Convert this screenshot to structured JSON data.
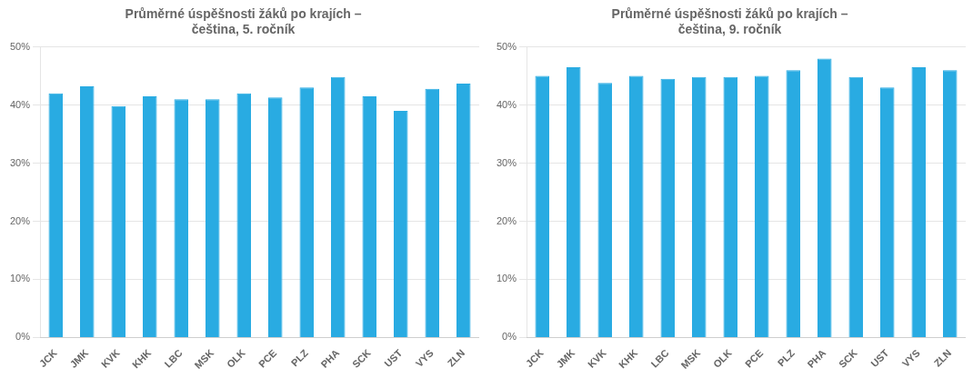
{
  "chart_data": [
    {
      "type": "bar",
      "title": "Průměrné úspěšnosti žáků po krajích –\nčeština, 5. ročník",
      "categories": [
        "JCK",
        "JMK",
        "KVK",
        "KHK",
        "LBC",
        "MSK",
        "OLK",
        "PCE",
        "PLZ",
        "PHA",
        "SCK",
        "UST",
        "VYS",
        "ZLN"
      ],
      "values": [
        0.42,
        0.432,
        0.398,
        0.415,
        0.41,
        0.41,
        0.42,
        0.413,
        0.43,
        0.448,
        0.415,
        0.39,
        0.428,
        0.437
      ],
      "color": "#29ABE2",
      "ylim": [
        0,
        0.5
      ],
      "yticks": [
        {
          "value": 0.0,
          "label": "0%"
        },
        {
          "value": 0.1,
          "label": "10%"
        },
        {
          "value": 0.2,
          "label": "20%"
        },
        {
          "value": 0.3,
          "label": "30%"
        },
        {
          "value": 0.4,
          "label": "40%"
        },
        {
          "value": 0.5,
          "label": "50%"
        }
      ],
      "grid": true
    },
    {
      "type": "bar",
      "title": "Průměrné úspěšnosti žáků po krajích –\nčeština, 9. ročník",
      "categories": [
        "JCK",
        "JMK",
        "KVK",
        "KHK",
        "LBC",
        "MSK",
        "OLK",
        "PCE",
        "PLZ",
        "PHA",
        "SCK",
        "UST",
        "VYS",
        "ZLN"
      ],
      "values": [
        0.45,
        0.465,
        0.438,
        0.45,
        0.445,
        0.448,
        0.448,
        0.45,
        0.46,
        0.48,
        0.448,
        0.43,
        0.465,
        0.46
      ],
      "color": "#29ABE2",
      "ylim": [
        0,
        0.5
      ],
      "yticks": [
        {
          "value": 0.0,
          "label": "0%"
        },
        {
          "value": 0.1,
          "label": "10%"
        },
        {
          "value": 0.2,
          "label": "20%"
        },
        {
          "value": 0.3,
          "label": "30%"
        },
        {
          "value": 0.4,
          "label": "40%"
        },
        {
          "value": 0.5,
          "label": "50%"
        }
      ],
      "grid": true
    }
  ]
}
